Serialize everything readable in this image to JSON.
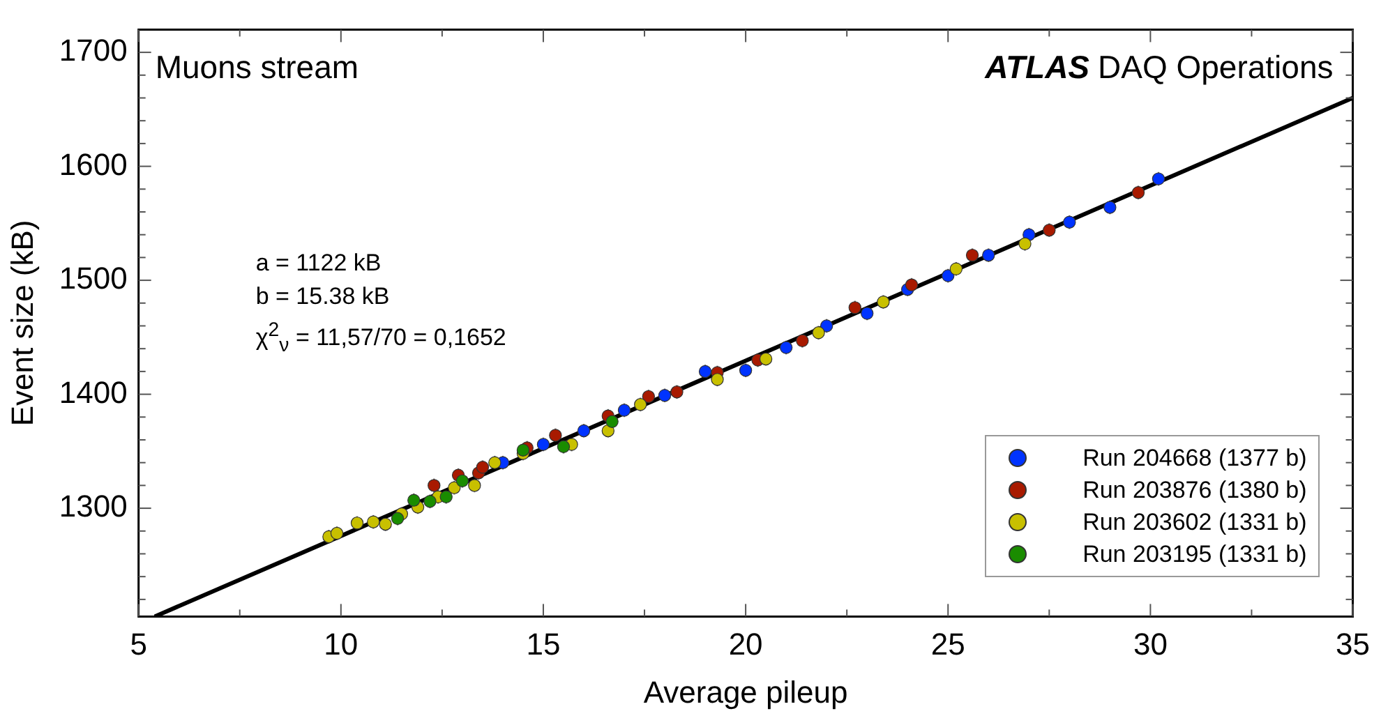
{
  "chart_data": {
    "type": "scatter",
    "xlabel": "Average pileup",
    "ylabel": "Event size (kB)",
    "xlim": [
      5,
      35
    ],
    "xticks": [
      5,
      {
        "value": 7.5,
        "label": null
      },
      10,
      {
        "value": 12.5,
        "label": null
      },
      15,
      {
        "value": 17.5,
        "label": null
      },
      20,
      {
        "value": 22.5,
        "label": null
      },
      25,
      {
        "value": 27.5,
        "label": null
      },
      30,
      {
        "value": 32.5,
        "label": null
      },
      35
    ],
    "ylim": [
      1205,
      1720
    ],
    "yticks": [
      {
        "value": 1220,
        "label": null
      },
      {
        "value": 1240,
        "label": null
      },
      {
        "value": 1260,
        "label": null
      },
      {
        "value": 1280,
        "label": null
      },
      1300,
      {
        "value": 1320,
        "label": null
      },
      {
        "value": 1340,
        "label": null
      },
      {
        "value": 1360,
        "label": null
      },
      {
        "value": 1380,
        "label": null
      },
      1400,
      {
        "value": 1420,
        "label": null
      },
      {
        "value": 1440,
        "label": null
      },
      {
        "value": 1460,
        "label": null
      },
      {
        "value": 1480,
        "label": null
      },
      1500,
      {
        "value": 1520,
        "label": null
      },
      {
        "value": 1540,
        "label": null
      },
      {
        "value": 1560,
        "label": null
      },
      {
        "value": 1580,
        "label": null
      },
      1600,
      {
        "value": 1620,
        "label": null
      },
      {
        "value": 1640,
        "label": null
      },
      {
        "value": 1660,
        "label": null
      },
      {
        "value": 1680,
        "label": null
      },
      1700
    ],
    "grid": false,
    "legend": "bottom right",
    "marker": "circle",
    "annotations": [
      "Muons stream",
      "ATLAS",
      "DAQ Operations",
      "a = 1122 kB",
      "b = 15.38 kB",
      "χ$^{2}$$_{ν}$ = 11,57/70 = 0,1652"
    ],
    "series": [
      {
        "name": "Run 204668 (1377 b)",
        "color": "#0033ff",
        "x": [
          14.0,
          15.0,
          16.0,
          17.0,
          18.0,
          19.0,
          20.0,
          21.0,
          22.0,
          23.0,
          24.0,
          25.0,
          26.0,
          27.0,
          28.0,
          29.0,
          30.2
        ],
        "values": [
          1340,
          1356,
          1368,
          1386,
          1399,
          1420,
          1421,
          1441,
          1460,
          1471,
          1492,
          1504,
          1522,
          1540,
          1551,
          1564,
          1589
        ],
        "errors": [
          6,
          6,
          6,
          6,
          6,
          6,
          6,
          6,
          6,
          6,
          6,
          6,
          6,
          6,
          6,
          6,
          6
        ]
      },
      {
        "name": "Run 203876 (1380 b)",
        "color": "#a81a00",
        "x": [
          12.3,
          12.9,
          13.4,
          13.5,
          14.6,
          15.3,
          16.6,
          17.6,
          18.3,
          19.3,
          20.3,
          21.4,
          22.7,
          24.1,
          25.6,
          27.5,
          29.7
        ],
        "values": [
          1320,
          1329,
          1331,
          1336,
          1353,
          1364,
          1381,
          1398,
          1402,
          1419,
          1430,
          1447,
          1476,
          1496,
          1522,
          1544,
          1577
        ],
        "errors": [
          6,
          6,
          6,
          6,
          6,
          6,
          6,
          6,
          6,
          6,
          6,
          6,
          6,
          6,
          6,
          6,
          6
        ]
      },
      {
        "name": "Run 203602 (1331 b)",
        "color": "#c8c000",
        "x": [
          9.7,
          9.9,
          10.4,
          10.8,
          11.1,
          11.5,
          11.9,
          12.4,
          12.8,
          13.3,
          13.8,
          14.5,
          15.7,
          16.6,
          17.4,
          19.3,
          20.5,
          21.8,
          23.4,
          25.2,
          26.9
        ],
        "values": [
          1275,
          1278,
          1287,
          1288,
          1286,
          1295,
          1301,
          1310,
          1318,
          1320,
          1340,
          1348,
          1356,
          1368,
          1391,
          1413,
          1431,
          1454,
          1481,
          1510,
          1532
        ],
        "errors": [
          6,
          6,
          6,
          6,
          6,
          6,
          6,
          6,
          6,
          6,
          6,
          6,
          6,
          6,
          6,
          6,
          6,
          6,
          6,
          6,
          6
        ]
      },
      {
        "name": "Run 203195 (1331 b)",
        "color": "#1a8c00",
        "x": [
          11.4,
          11.8,
          12.2,
          12.6,
          13.0,
          14.5,
          15.5,
          16.7
        ],
        "values": [
          1291,
          1307,
          1306,
          1310,
          1324,
          1351,
          1354,
          1376
        ],
        "errors": [
          6,
          6,
          6,
          6,
          6,
          6,
          6,
          6
        ]
      },
      {
        "type": "line",
        "marker": "none",
        "color": "#000000",
        "x": [
          5.4,
          35
        ],
        "values": [
          1205,
          1660
        ]
      }
    ]
  }
}
